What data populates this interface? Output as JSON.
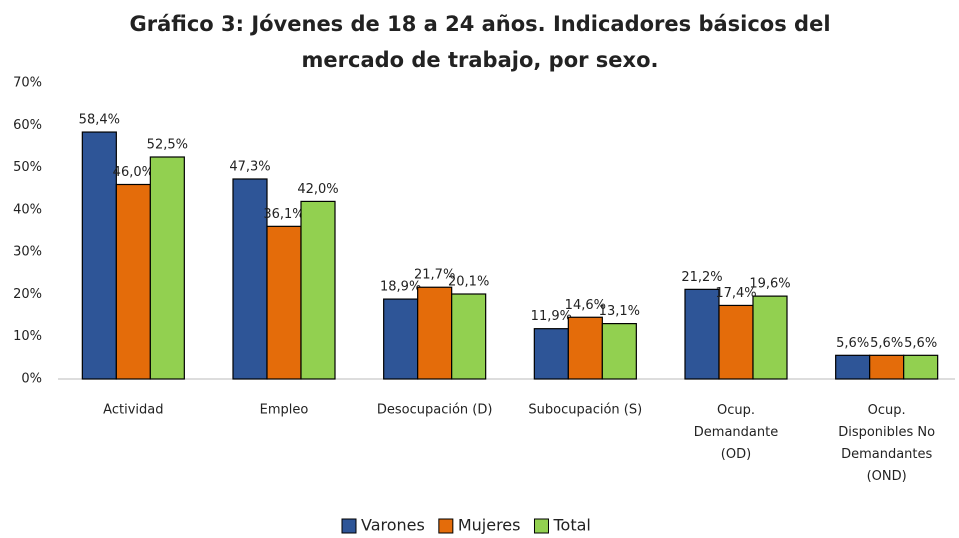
{
  "chart_data": {
    "type": "bar",
    "title": "Gráfico 3: Jóvenes de 18 a 24 años. Indicadores básicos del\nmercado de trabajo, por sexo.",
    "categories": [
      "Actividad",
      "Empleo",
      "Desocupación (D)",
      "Subocupación (S)",
      "Ocup.\nDemandante\n(OD)",
      "Ocup.\nDisponibles No\nDemandantes\n(OND)"
    ],
    "series": [
      {
        "name": "Varones",
        "color": "#2e5597",
        "values": [
          58.4,
          47.3,
          18.9,
          11.9,
          21.2,
          5.6
        ],
        "value_labels": [
          "58,4%",
          "47,3%",
          "18,9%",
          "11,9%",
          "21,2%",
          "5,6%"
        ]
      },
      {
        "name": "Mujeres",
        "color": "#e46c0a",
        "values": [
          46.0,
          36.1,
          21.7,
          14.6,
          17.4,
          5.6
        ],
        "value_labels": [
          "46,0%",
          "36,1%",
          "21,7%",
          "14,6%",
          "17,4%",
          "5,6%"
        ]
      },
      {
        "name": "Total",
        "color": "#92d050",
        "values": [
          52.5,
          42.0,
          20.1,
          13.1,
          19.6,
          5.6
        ],
        "value_labels": [
          "52,5%",
          "42,0%",
          "20,1%",
          "13,1%",
          "19,6%",
          "5,6%"
        ]
      }
    ],
    "ylim": [
      0,
      70
    ],
    "yticks": [
      {
        "value": 0,
        "label": "0%"
      },
      {
        "value": 10,
        "label": "10%"
      },
      {
        "value": 20,
        "label": "20%"
      },
      {
        "value": 30,
        "label": "30%"
      },
      {
        "value": 40,
        "label": "40%"
      },
      {
        "value": 50,
        "label": "50%"
      },
      {
        "value": 60,
        "label": "60%"
      },
      {
        "value": 70,
        "label": "70%"
      }
    ],
    "legend": "bottom"
  }
}
